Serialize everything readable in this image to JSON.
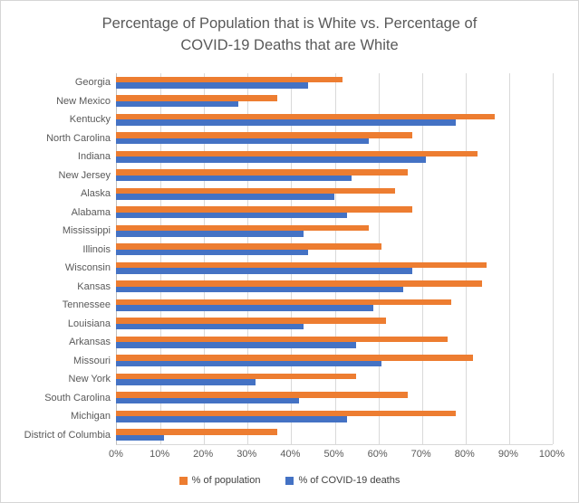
{
  "chart_data": {
    "type": "bar",
    "orientation": "horizontal",
    "title": "Percentage of Population that is White vs. Percentage of COVID-19 Deaths that are White",
    "title_lines": [
      "Percentage of Population that is White vs. Percentage of",
      "COVID-19 Deaths that are White"
    ],
    "categories": [
      "Georgia",
      "New Mexico",
      "Kentucky",
      "North Carolina",
      "Indiana",
      "New Jersey",
      "Alaska",
      "Alabama",
      "Mississippi",
      "Illinois",
      "Wisconsin",
      "Kansas",
      "Tennessee",
      "Louisiana",
      "Arkansas",
      "Missouri",
      "New York",
      "South Carolina",
      "Michigan",
      "District of Columbia"
    ],
    "series": [
      {
        "name": "% of population",
        "color": "#ED7D31",
        "values": [
          52,
          37,
          87,
          68,
          83,
          67,
          64,
          68,
          58,
          61,
          85,
          84,
          77,
          62,
          76,
          82,
          55,
          67,
          78,
          37
        ]
      },
      {
        "name": "% of COVID-19 deaths",
        "color": "#4472C4",
        "values": [
          44,
          28,
          78,
          58,
          71,
          54,
          50,
          53,
          43,
          44,
          68,
          66,
          59,
          43,
          55,
          61,
          32,
          42,
          53,
          11
        ]
      }
    ],
    "x_ticks": [
      "0%",
      "10%",
      "20%",
      "30%",
      "40%",
      "50%",
      "60%",
      "70%",
      "80%",
      "90%",
      "100%"
    ],
    "xlim": [
      0,
      100
    ],
    "grid": "vertical",
    "gridline_color": "#d9d9d9",
    "axis_line_color": "#bfbfbf",
    "text_color": "#595959",
    "legend_position": "bottom"
  }
}
